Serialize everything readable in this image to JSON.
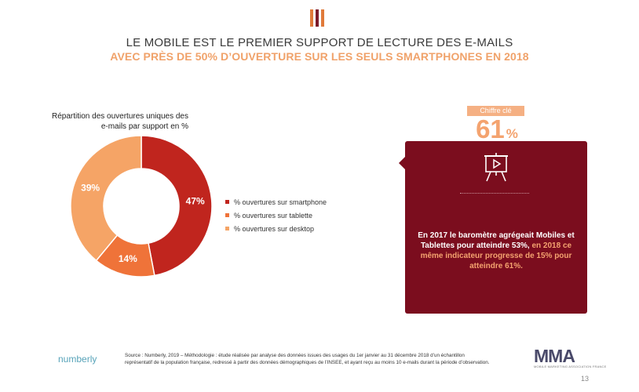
{
  "header": {
    "title_line1": "LE MOBILE EST LE PREMIER SUPPORT DE LECTURE DES E-MAILS",
    "title_line2": "AVEC PRÈS DE 50% D’OUVERTURE SUR LES SEULS SMARTPHONES EN 2018",
    "logo_icon": "three-vertical-bars-icon",
    "logo_colors": [
      "#e07a3a",
      "#7b1a2a",
      "#e07a3a"
    ]
  },
  "chart_caption": {
    "line1": "Répartition des ouvertures uniques des",
    "line2": "e-mails par support en %"
  },
  "chart_data": {
    "type": "pie",
    "title": "Répartition des ouvertures uniques des e-mails par support en %",
    "categories": [
      "% ouvertures sur smartphone",
      "% ouvertures sur tablette",
      "% ouvertures sur desktop"
    ],
    "values": [
      47,
      14,
      39
    ],
    "labels": [
      "47%",
      "14%",
      "39%"
    ],
    "colors": [
      "#c0251e",
      "#ef7339",
      "#f5a466"
    ],
    "donut": true,
    "legend_position": "right"
  },
  "key_figure": {
    "badge": "Chiffre clé",
    "value": "61",
    "unit": "%"
  },
  "card": {
    "icon": "presentation-screen-icon",
    "text_white": "En 2017 le baromètre agrégeait Mobiles et Tablettes pour atteindre 53%,",
    "text_highlight": " en 2018 ce même indicateur progresse de 15% pour",
    "text_end": " atteindre 61%.",
    "background": "#7b0d1e",
    "highlight_color": "#f4a36f"
  },
  "footer": {
    "brand": "numberly",
    "source_line1": "Source : Numberly, 2019 – Méthodologie : étude réalisée par analyse des données issues des usages du 1er janvier au 31 décembre 2018 d’un échantillon",
    "source_line2": "représentatif de la population française, redressé à partir des données démographiques de l’INSEE, et ayant reçu au moins 10 e-mails durant la période d’observation.",
    "mma_logo": "MMA",
    "mma_sub": "MOBILE MARKETING ASSOCIATION FRANCE",
    "page_number": "13"
  }
}
